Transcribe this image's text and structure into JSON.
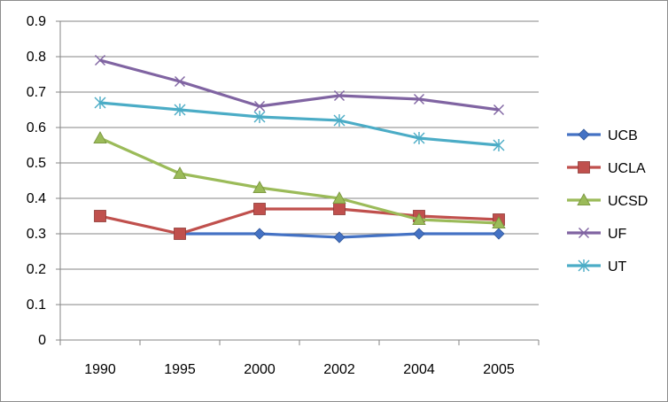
{
  "chart_data": {
    "type": "line",
    "categories": [
      "1990",
      "1995",
      "2000",
      "2002",
      "2004",
      "2005"
    ],
    "ylim": [
      0,
      0.9
    ],
    "yticks": [
      "0",
      "0.1",
      "0.2",
      "0.3",
      "0.4",
      "0.5",
      "0.6",
      "0.7",
      "0.8",
      "0.9"
    ],
    "grid": true,
    "legend": "right",
    "series": [
      {
        "name": "UCB",
        "color": "#4472C4",
        "marker": "diamond",
        "values": [
          null,
          0.3,
          0.3,
          0.29,
          0.3,
          0.3
        ]
      },
      {
        "name": "UCLA",
        "color": "#C0504D",
        "marker": "square",
        "values": [
          0.35,
          0.3,
          0.37,
          0.37,
          0.35,
          0.34
        ]
      },
      {
        "name": "UCSD",
        "color": "#9BBB59",
        "marker": "triangle",
        "values": [
          0.57,
          0.47,
          0.43,
          0.4,
          0.34,
          0.33
        ]
      },
      {
        "name": "UF",
        "color": "#8064A2",
        "marker": "x",
        "values": [
          0.79,
          0.73,
          0.66,
          0.69,
          0.68,
          0.65
        ]
      },
      {
        "name": "UT",
        "color": "#4BACC6",
        "marker": "star",
        "values": [
          0.67,
          0.65,
          0.63,
          0.62,
          0.57,
          0.55
        ]
      }
    ]
  }
}
